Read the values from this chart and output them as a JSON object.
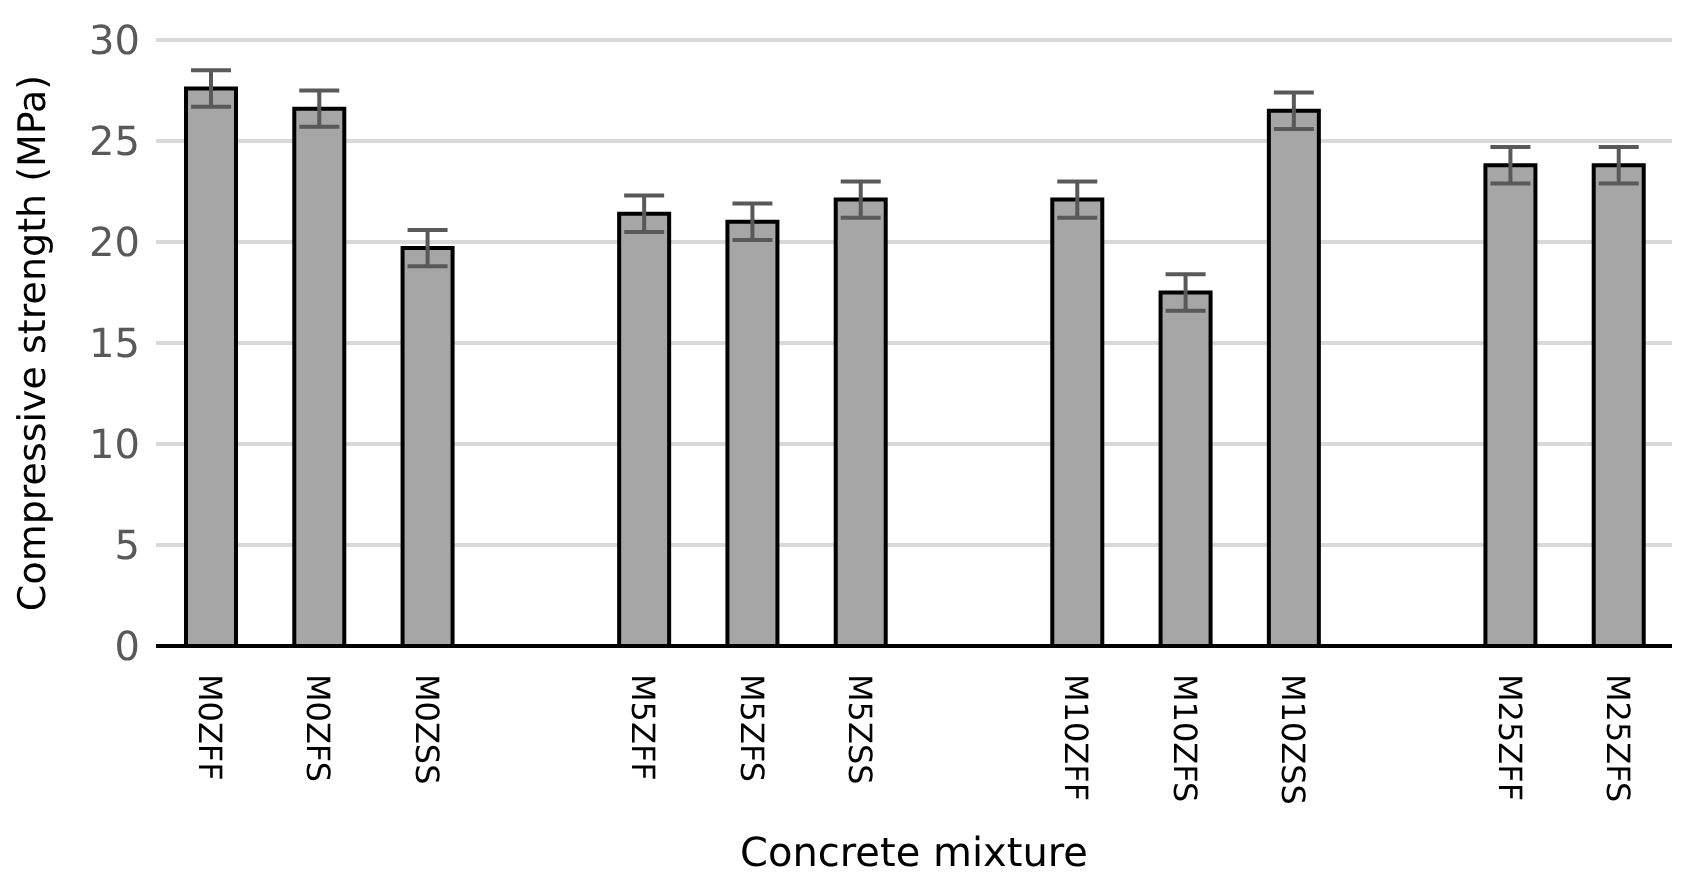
{
  "chart_data": {
    "type": "bar",
    "xlabel": "Concrete mixture",
    "ylabel": "Compressive strength (MPa)",
    "categories": [
      "M0ZFF",
      "M0ZFS",
      "M0ZSS",
      null,
      "M5ZFF",
      "M5ZFS",
      "M5ZSS",
      null,
      "M10ZFF",
      "M10ZFS",
      "M10ZSS",
      null,
      "M25ZFF",
      "M25ZFS"
    ],
    "values": [
      27.6,
      26.6,
      19.7,
      null,
      21.4,
      21.0,
      22.1,
      null,
      22.1,
      17.5,
      26.5,
      null,
      23.8,
      23.8
    ],
    "errors": [
      0.9,
      0.9,
      0.9,
      null,
      0.9,
      0.9,
      0.9,
      null,
      0.9,
      0.9,
      0.9,
      null,
      0.9,
      0.9
    ],
    "color": "#a6a6a6",
    "ylim": [
      0,
      30
    ],
    "yticks": [
      0,
      5,
      10,
      15,
      20,
      25,
      30
    ],
    "grid": "y",
    "legend": false
  }
}
